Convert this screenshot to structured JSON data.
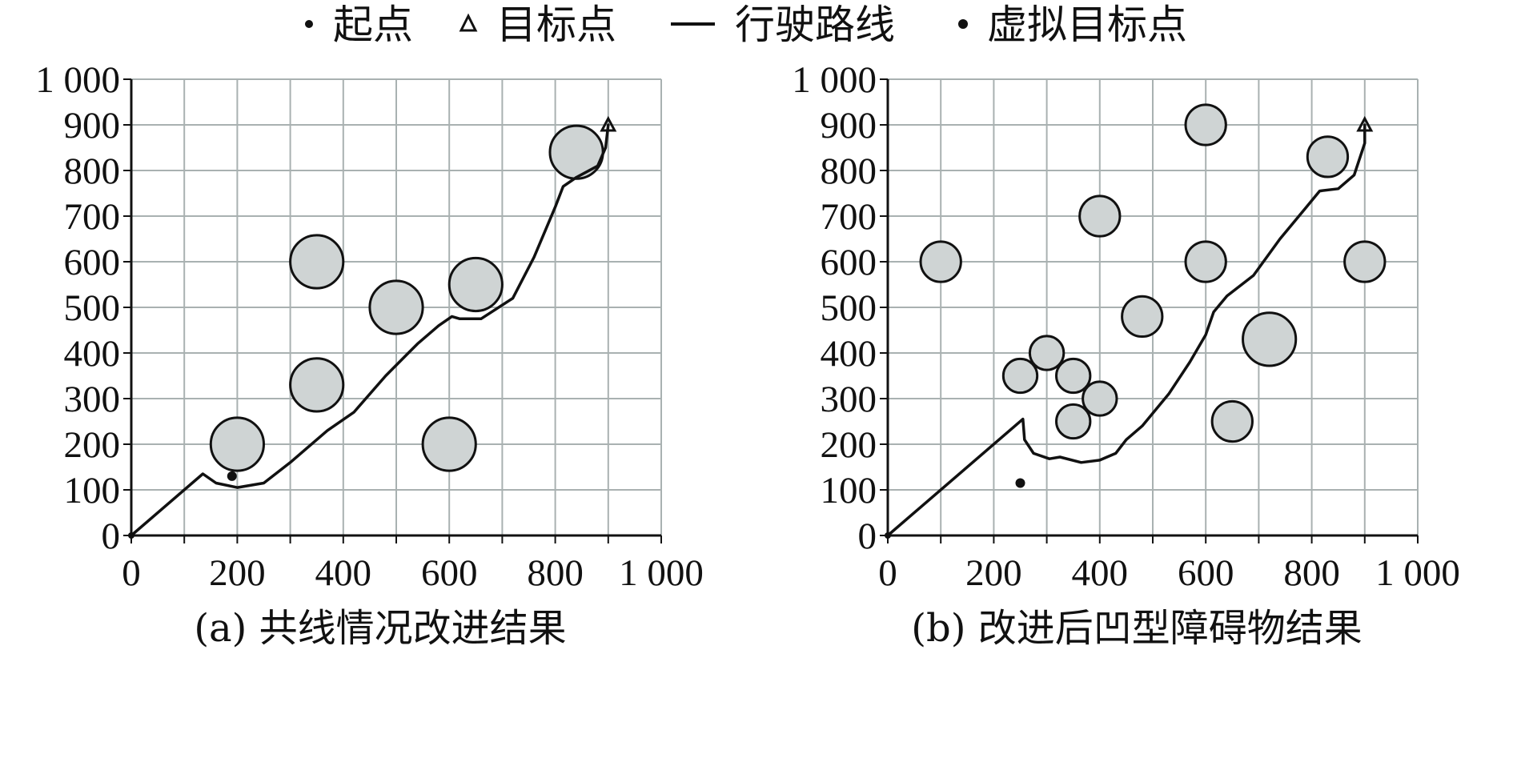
{
  "legend": {
    "items": [
      {
        "label": "起点",
        "icon": "dot-icon"
      },
      {
        "label": "目标点",
        "icon": "triangle-icon"
      },
      {
        "label": "行驶路线",
        "icon": "line-icon"
      },
      {
        "label": "虚拟目标点",
        "icon": "star-dot-icon"
      }
    ]
  },
  "colors": {
    "obstacle_fill": "#cfd4d4",
    "grid": "#a9b1b1",
    "ink": "#111111"
  },
  "chart_data": [
    {
      "type": "scatter",
      "caption": "(a) 共线情况改进结果",
      "xlim": [
        0,
        1000
      ],
      "ylim": [
        0,
        1000
      ],
      "xticks": [
        0,
        200,
        400,
        600,
        800,
        1000
      ],
      "xtick_labels": [
        "0",
        "200",
        "400",
        "600",
        "800",
        "1 000"
      ],
      "yticks": [
        0,
        100,
        200,
        300,
        400,
        500,
        600,
        700,
        800,
        900,
        1000
      ],
      "ytick_labels": [
        "0",
        "100",
        "200",
        "300",
        "400",
        "500",
        "600",
        "700",
        "800",
        "900",
        "1 000"
      ],
      "grid": true,
      "start": {
        "x": 0,
        "y": 0
      },
      "target": {
        "x": 900,
        "y": 900
      },
      "virtual_target": {
        "x": 190,
        "y": 130
      },
      "obstacles": [
        {
          "x": 200,
          "y": 200,
          "r": 50
        },
        {
          "x": 350,
          "y": 330,
          "r": 50
        },
        {
          "x": 350,
          "y": 600,
          "r": 50
        },
        {
          "x": 500,
          "y": 500,
          "r": 50
        },
        {
          "x": 600,
          "y": 200,
          "r": 50
        },
        {
          "x": 650,
          "y": 550,
          "r": 50
        },
        {
          "x": 840,
          "y": 840,
          "r": 50
        }
      ],
      "path": [
        [
          0,
          0
        ],
        [
          135,
          135
        ],
        [
          160,
          115
        ],
        [
          200,
          105
        ],
        [
          250,
          115
        ],
        [
          300,
          160
        ],
        [
          370,
          230
        ],
        [
          420,
          270
        ],
        [
          480,
          350
        ],
        [
          540,
          420
        ],
        [
          580,
          460
        ],
        [
          605,
          480
        ],
        [
          620,
          475
        ],
        [
          660,
          475
        ],
        [
          720,
          520
        ],
        [
          760,
          610
        ],
        [
          800,
          720
        ],
        [
          815,
          765
        ],
        [
          840,
          785
        ],
        [
          880,
          810
        ],
        [
          895,
          850
        ],
        [
          900,
          900
        ]
      ]
    },
    {
      "type": "scatter",
      "caption": "(b) 改进后凹型障碍物结果",
      "xlim": [
        0,
        1000
      ],
      "ylim": [
        0,
        1000
      ],
      "xticks": [
        0,
        200,
        400,
        600,
        800,
        1000
      ],
      "xtick_labels": [
        "0",
        "200",
        "400",
        "600",
        "800",
        "1 000"
      ],
      "yticks": [
        0,
        100,
        200,
        300,
        400,
        500,
        600,
        700,
        800,
        900,
        1000
      ],
      "ytick_labels": [
        "0",
        "100",
        "200",
        "300",
        "400",
        "500",
        "600",
        "700",
        "800",
        "900",
        "1 000"
      ],
      "grid": true,
      "start": {
        "x": 0,
        "y": 0
      },
      "target": {
        "x": 900,
        "y": 900
      },
      "virtual_target": {
        "x": 250,
        "y": 115
      },
      "obstacles": [
        {
          "x": 100,
          "y": 600,
          "r": 38
        },
        {
          "x": 250,
          "y": 350,
          "r": 32
        },
        {
          "x": 300,
          "y": 400,
          "r": 32
        },
        {
          "x": 350,
          "y": 350,
          "r": 32
        },
        {
          "x": 350,
          "y": 250,
          "r": 32
        },
        {
          "x": 400,
          "y": 300,
          "r": 32
        },
        {
          "x": 400,
          "y": 700,
          "r": 38
        },
        {
          "x": 480,
          "y": 480,
          "r": 38
        },
        {
          "x": 600,
          "y": 900,
          "r": 38
        },
        {
          "x": 600,
          "y": 600,
          "r": 38
        },
        {
          "x": 650,
          "y": 250,
          "r": 38
        },
        {
          "x": 720,
          "y": 430,
          "r": 50
        },
        {
          "x": 830,
          "y": 830,
          "r": 38
        },
        {
          "x": 900,
          "y": 600,
          "r": 38
        }
      ],
      "path": [
        [
          0,
          0
        ],
        [
          255,
          255
        ],
        [
          258,
          210
        ],
        [
          275,
          180
        ],
        [
          305,
          168
        ],
        [
          325,
          172
        ],
        [
          365,
          160
        ],
        [
          400,
          165
        ],
        [
          430,
          180
        ],
        [
          450,
          210
        ],
        [
          480,
          240
        ],
        [
          530,
          310
        ],
        [
          570,
          380
        ],
        [
          600,
          440
        ],
        [
          615,
          490
        ],
        [
          640,
          525
        ],
        [
          690,
          570
        ],
        [
          740,
          650
        ],
        [
          790,
          720
        ],
        [
          815,
          755
        ],
        [
          850,
          760
        ],
        [
          880,
          790
        ],
        [
          900,
          860
        ],
        [
          900,
          900
        ]
      ]
    }
  ]
}
